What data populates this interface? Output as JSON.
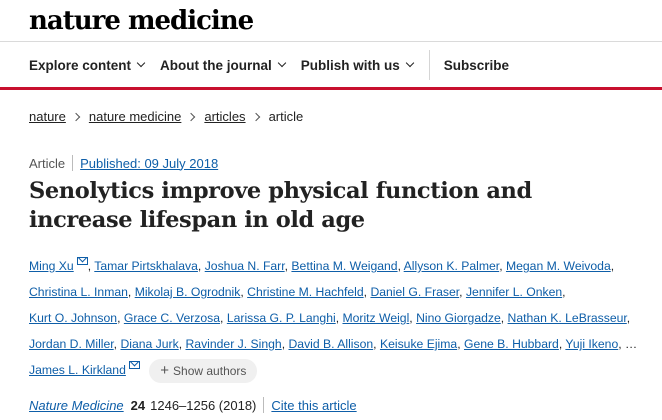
{
  "site": {
    "logo": "nature medicine"
  },
  "nav": {
    "explore": "Explore content",
    "about": "About the journal",
    "publish": "Publish with us",
    "subscribe": "Subscribe"
  },
  "breadcrumb": [
    "nature",
    "nature medicine",
    "articles",
    "article"
  ],
  "article": {
    "type": "Article",
    "published": "Published: 09 July 2018",
    "title": "Senolytics improve physical function and increase lifespan in old age",
    "authors": [
      "Ming Xu",
      "Tamar Pirtskhalava",
      "Joshua N. Farr",
      "Bettina M. Weigand",
      "Allyson K. Palmer",
      "Megan M. Weivoda",
      "Christina L. Inman",
      "Mikolaj B. Ogrodnik",
      "Christine M. Hachfeld",
      "Daniel G. Fraser",
      "Jennifer L. Onken",
      "Kurt O. Johnson",
      "Grace C. Verzosa",
      "Larissa G. P. Langhi",
      "Moritz Weigl",
      "Nino Giorgadze",
      "Nathan K. LeBrasseur",
      "Jordan D. Miller",
      "Diana Jurk",
      "Ravinder J. Singh",
      "David B. Allison",
      "Keisuke Ejima",
      "Gene B. Hubbard",
      "Yuji Ikeno"
    ],
    "ellipsis": "…",
    "last_author": "James L. Kirkland",
    "show_authors": "Show authors",
    "journal": "Nature Medicine",
    "volume": "24",
    "pages": "1246–1256 (2018)",
    "cite": "Cite this article"
  },
  "icons": {
    "mail": "envelope-icon",
    "plus": "plus-icon",
    "chevron": "chevron-down-icon"
  },
  "colors": {
    "accent_red": "#c8102e",
    "link_blue": "#0e5ea8"
  }
}
